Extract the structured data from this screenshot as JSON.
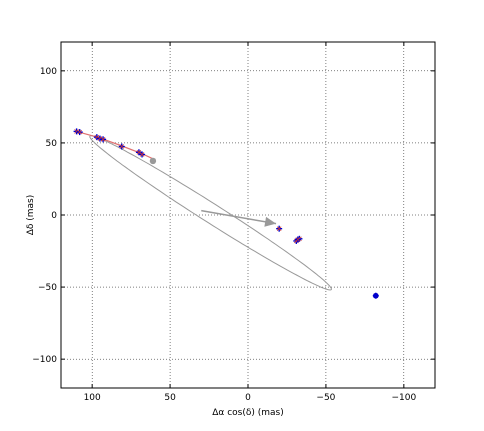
{
  "chart_data": {
    "type": "scatter",
    "xlabel": "Δα cos(δ) (mas)",
    "ylabel": "Δδ (mas)",
    "xlim": [
      120,
      -120
    ],
    "ylim": [
      -120,
      120
    ],
    "xticks": [
      100,
      50,
      0,
      -50,
      -100
    ],
    "xtick_labels": [
      "100",
      "50",
      "0",
      "−50",
      "−100"
    ],
    "yticks": [
      100,
      50,
      0,
      -50,
      -100
    ],
    "ytick_labels": [
      "100",
      "50",
      "0",
      "−50",
      "−100"
    ],
    "grid": true,
    "colors": {
      "orbit": "#999999",
      "fit_curve": "#e07070",
      "observations": "#0000cc",
      "predicted": "#cc3333",
      "star": "#999999"
    },
    "orbit_ellipse": {
      "center": [
        24,
        1.5
      ],
      "semi_major": 94,
      "semi_minor": 6.5,
      "angle_deg": 34.5
    },
    "star_position": [
      61,
      37.5
    ],
    "direction_arrow": {
      "from": [
        30,
        3
      ],
      "to": [
        -18,
        -6
      ]
    },
    "fit_curve": [
      [
        110,
        58
      ],
      [
        95,
        53.5
      ],
      [
        80,
        47.5
      ],
      [
        68,
        42.5
      ],
      [
        60,
        38.5
      ]
    ],
    "observations": [
      [
        110,
        58
      ],
      [
        108,
        57.5
      ],
      [
        97,
        54
      ],
      [
        95,
        53
      ],
      [
        93,
        52.5
      ],
      [
        81,
        47.5
      ],
      [
        70,
        43.5
      ],
      [
        68,
        42
      ],
      [
        -20,
        -9.5
      ],
      [
        -31,
        -18
      ],
      [
        -33,
        -16.5
      ],
      [
        -32,
        -17
      ],
      [
        -82,
        -56
      ]
    ]
  }
}
